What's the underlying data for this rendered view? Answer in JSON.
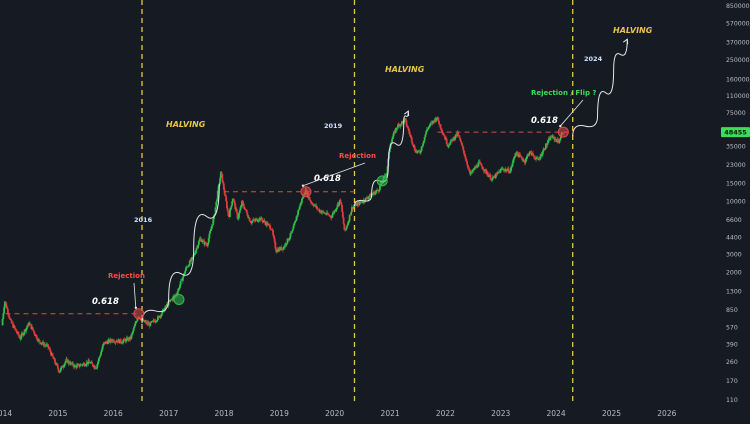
{
  "chart_data": {
    "type": "candlestick",
    "y_scale": "log",
    "ylim": [
      110,
      850000
    ],
    "xlim": [
      "2013-12-15",
      "2026-12-31"
    ],
    "x_ticks": [
      "2014",
      "2015",
      "2016",
      "2017",
      "2018",
      "2019",
      "2020",
      "2021",
      "2022",
      "2023",
      "2024",
      "2025",
      "2026"
    ],
    "y_ticks": [
      "850000",
      "570000",
      "370000",
      "250000",
      "160000",
      "110000",
      "75000",
      "50000",
      "35000",
      "23000",
      "15000",
      "10000",
      "6600",
      "4400",
      "3000",
      "2000",
      "1300",
      "850",
      "570",
      "390",
      "260",
      "170",
      "110"
    ],
    "current_price_badge": "48455",
    "price_path": [
      [
        "2014-01-01",
        600
      ],
      [
        "2014-01-20",
        1050
      ],
      [
        "2014-03-01",
        650
      ],
      [
        "2014-05-01",
        450
      ],
      [
        "2014-07-01",
        630
      ],
      [
        "2014-09-01",
        420
      ],
      [
        "2014-11-01",
        370
      ],
      [
        "2015-01-15",
        210
      ],
      [
        "2015-03-01",
        270
      ],
      [
        "2015-05-01",
        235
      ],
      [
        "2015-08-01",
        260
      ],
      [
        "2015-09-15",
        230
      ],
      [
        "2015-11-05",
        400
      ],
      [
        "2016-01-01",
        430
      ],
      [
        "2016-03-01",
        415
      ],
      [
        "2016-05-01",
        450
      ],
      [
        "2016-06-18",
        750
      ],
      [
        "2016-07-20",
        660
      ],
      [
        "2016-09-01",
        610
      ],
      [
        "2016-11-01",
        720
      ],
      [
        "2017-01-05",
        1000
      ],
      [
        "2017-03-01",
        1250
      ],
      [
        "2017-05-01",
        2200
      ],
      [
        "2017-06-15",
        2800
      ],
      [
        "2017-08-01",
        4300
      ],
      [
        "2017-09-15",
        3700
      ],
      [
        "2017-11-01",
        7000
      ],
      [
        "2017-12-17",
        19500
      ],
      [
        "2018-02-06",
        7000
      ],
      [
        "2018-03-05",
        11000
      ],
      [
        "2018-04-07",
        6800
      ],
      [
        "2018-05-05",
        9800
      ],
      [
        "2018-07-01",
        6300
      ],
      [
        "2018-09-01",
        6800
      ],
      [
        "2018-11-15",
        5500
      ],
      [
        "2018-12-15",
        3300
      ],
      [
        "2019-02-01",
        3500
      ],
      [
        "2019-04-01",
        5000
      ],
      [
        "2019-05-15",
        8500
      ],
      [
        "2019-06-26",
        13000
      ],
      [
        "2019-08-01",
        10000
      ],
      [
        "2019-09-25",
        8200
      ],
      [
        "2019-12-15",
        7100
      ],
      [
        "2020-02-13",
        10400
      ],
      [
        "2020-03-13",
        4900
      ],
      [
        "2020-05-01",
        8800
      ],
      [
        "2020-07-25",
        10500
      ],
      [
        "2020-10-20",
        13000
      ],
      [
        "2020-12-15",
        19500
      ],
      [
        "2021-01-08",
        38000
      ],
      [
        "2021-02-20",
        55000
      ],
      [
        "2021-04-14",
        64000
      ],
      [
        "2021-06-20",
        32000
      ],
      [
        "2021-07-20",
        30000
      ],
      [
        "2021-09-07",
        52000
      ],
      [
        "2021-11-10",
        68000
      ],
      [
        "2022-01-22",
        36000
      ],
      [
        "2022-03-28",
        47000
      ],
      [
        "2022-05-10",
        30000
      ],
      [
        "2022-06-18",
        18500
      ],
      [
        "2022-08-15",
        24000
      ],
      [
        "2022-11-10",
        16500
      ],
      [
        "2023-01-15",
        21000
      ],
      [
        "2023-03-10",
        20000
      ],
      [
        "2023-04-14",
        30500
      ],
      [
        "2023-06-15",
        25000
      ],
      [
        "2023-07-14",
        31000
      ],
      [
        "2023-09-10",
        25500
      ],
      [
        "2023-10-25",
        34500
      ],
      [
        "2023-12-05",
        44000
      ],
      [
        "2024-01-23",
        39000
      ],
      [
        "2024-02-18",
        48455
      ]
    ],
    "halvings": [
      {
        "date": "2016-07-09",
        "label": "HALVING"
      },
      {
        "date": "2020-05-11",
        "label": "HALVING"
      },
      {
        "date": "2024-04-20",
        "label": "HALVING"
      }
    ],
    "year_notes": [
      {
        "text": "2016",
        "date": "2016-01-15",
        "price": 7800
      },
      {
        "text": "2019",
        "date": "2019-08-01",
        "price": 90000
      },
      {
        "text": "2024",
        "date": "2024-03-01",
        "price": 260000
      }
    ],
    "fib_levels": [
      {
        "label": "0.618",
        "price": 780,
        "from": "2014-01-20",
        "to": "2016-06-18"
      },
      {
        "label": "0.618",
        "price": 12500,
        "from": "2018-01-01",
        "to": "2020-05-11"
      },
      {
        "label": "0.618",
        "price": 48455,
        "from": "2021-11-10",
        "to": "2024-04-20"
      }
    ],
    "annotations": [
      {
        "text": "Rejection",
        "kind": "rejection",
        "date": "2015-11-01",
        "price": 1650,
        "target_date": "2016-06-18",
        "target_price": 780
      },
      {
        "text": "Rejection",
        "kind": "rejection",
        "date": "2019-09-01",
        "price": 20000,
        "target_date": "2019-06-26",
        "target_price": 12500
      },
      {
        "text": "Rejection / Flip ?",
        "kind": "flip",
        "date": "2023-11-01",
        "price": 140000,
        "target_date": "2024-02-18",
        "target_price": 48455
      }
    ],
    "markers": [
      {
        "date": "2016-06-18",
        "price": 780,
        "color": "#e04848"
      },
      {
        "date": "2019-06-26",
        "price": 12500,
        "color": "#e04848"
      },
      {
        "date": "2024-02-18",
        "price": 48455,
        "color": "#e04848"
      },
      {
        "date": "2017-03-10",
        "price": 1080,
        "color": "#2fbf4a"
      },
      {
        "date": "2020-11-10",
        "price": 16000,
        "color": "#2fbf4a"
      }
    ],
    "curves": [
      {
        "points": [
          [
            "2016-07-09",
            630
          ],
          [
            "2017-01-01",
            1100
          ],
          [
            "2017-06-15",
            3400
          ],
          [
            "2017-12-01",
            15000
          ]
        ],
        "arrow": false
      },
      {
        "points": [
          [
            "2020-05-11",
            9000
          ],
          [
            "2020-09-01",
            11500
          ],
          [
            "2020-12-20",
            22000
          ],
          [
            "2021-04-01",
            62000
          ],
          [
            "2021-05-01",
            78000
          ]
        ],
        "arrow": true
      },
      {
        "points": [
          [
            "2024-04-20",
            44000
          ],
          [
            "2024-10-01",
            70000
          ],
          [
            "2025-01-15",
            200000
          ],
          [
            "2025-04-15",
            400000
          ]
        ],
        "arrow": true
      }
    ],
    "colors": {
      "up": "#2fbf4a",
      "down": "#e03c3c",
      "badge": "#3ddc5a",
      "halving_line": "#e8c547",
      "fib_line": "#e04848"
    }
  }
}
